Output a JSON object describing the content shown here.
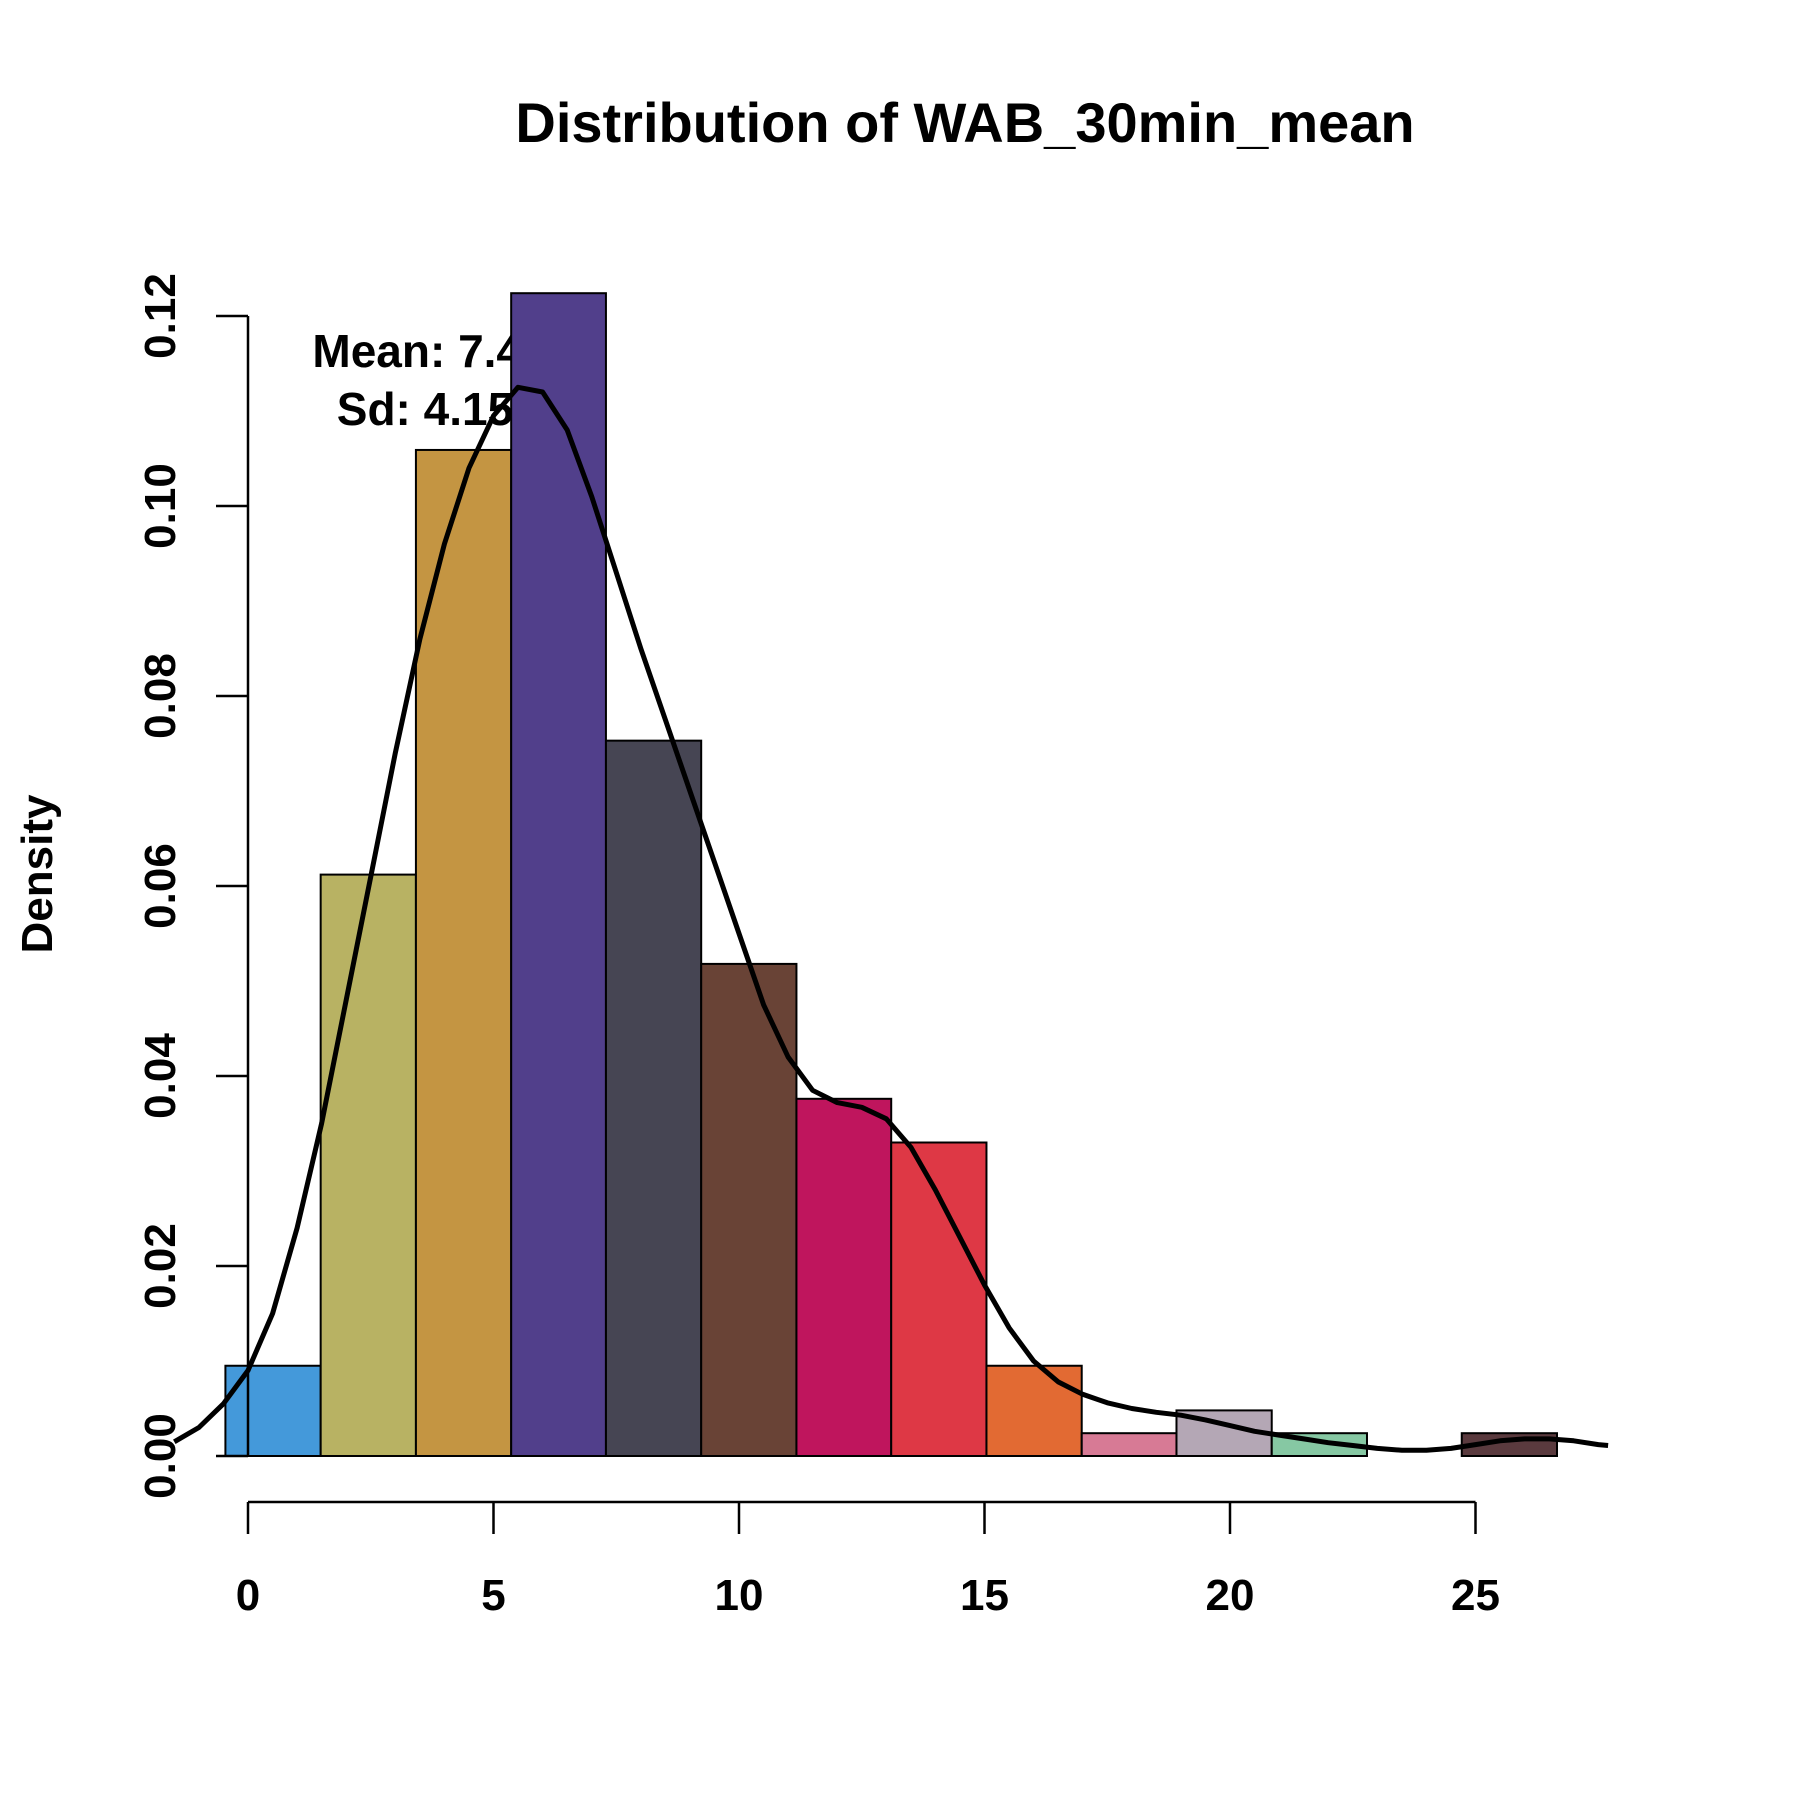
{
  "chart_data": {
    "type": "bar",
    "title": "Distribution of WAB_30min_mean",
    "xlabel": "",
    "ylabel": "Density",
    "xlim": [
      -1.5,
      27.7
    ],
    "ylim": [
      0,
      0.12
    ],
    "x_ticks": [
      "0",
      "5",
      "10",
      "15",
      "20",
      "25"
    ],
    "x_tick_values": [
      0,
      5,
      10,
      15,
      20,
      25
    ],
    "y_ticks": [
      "0.00",
      "0.02",
      "0.04",
      "0.06",
      "0.08",
      "0.10",
      "0.12"
    ],
    "y_tick_values": [
      0,
      0.02,
      0.04,
      0.06,
      0.08,
      0.1,
      0.12
    ],
    "grid": false,
    "annotations": [
      "Mean: 7.46",
      "Sd: 4.15"
    ],
    "bins": [
      {
        "x0": -0.46,
        "x1": 1.48,
        "density": 0.0095,
        "color": "#4499DA"
      },
      {
        "x0": 1.48,
        "x1": 3.42,
        "density": 0.0612,
        "color": "#B8B263"
      },
      {
        "x0": 3.42,
        "x1": 5.36,
        "density": 0.1059,
        "color": "#C49542"
      },
      {
        "x0": 5.36,
        "x1": 7.29,
        "density": 0.1224,
        "color": "#513F8B"
      },
      {
        "x0": 7.29,
        "x1": 9.23,
        "density": 0.0753,
        "color": "#464553"
      },
      {
        "x0": 9.23,
        "x1": 11.17,
        "density": 0.0518,
        "color": "#694336"
      },
      {
        "x0": 11.17,
        "x1": 13.1,
        "density": 0.0376,
        "color": "#BF155D"
      },
      {
        "x0": 13.1,
        "x1": 15.04,
        "density": 0.033,
        "color": "#DE3845"
      },
      {
        "x0": 15.04,
        "x1": 16.98,
        "density": 0.0095,
        "color": "#E26A33"
      },
      {
        "x0": 16.98,
        "x1": 18.91,
        "density": 0.0024,
        "color": "#D77A95"
      },
      {
        "x0": 18.91,
        "x1": 20.85,
        "density": 0.0048,
        "color": "#B4A7B5"
      },
      {
        "x0": 20.85,
        "x1": 22.79,
        "density": 0.0024,
        "color": "#86C8A3"
      },
      {
        "x0": 22.79,
        "x1": 24.72,
        "density": 0.0,
        "color": "#FFFFFF"
      },
      {
        "x0": 24.72,
        "x1": 26.66,
        "density": 0.0024,
        "color": "#5A3A3E"
      }
    ],
    "density_curve": [
      [
        -1.5,
        0.0015
      ],
      [
        -1.0,
        0.003
      ],
      [
        -0.5,
        0.0055
      ],
      [
        0.0,
        0.009
      ],
      [
        0.5,
        0.015
      ],
      [
        1.0,
        0.024
      ],
      [
        1.5,
        0.035
      ],
      [
        2.0,
        0.048
      ],
      [
        2.5,
        0.061
      ],
      [
        3.0,
        0.074
      ],
      [
        3.5,
        0.086
      ],
      [
        4.0,
        0.096
      ],
      [
        4.5,
        0.104
      ],
      [
        5.0,
        0.1095
      ],
      [
        5.5,
        0.1125
      ],
      [
        6.0,
        0.112
      ],
      [
        6.5,
        0.108
      ],
      [
        7.0,
        0.101
      ],
      [
        7.5,
        0.093
      ],
      [
        8.0,
        0.085
      ],
      [
        8.5,
        0.0775
      ],
      [
        9.0,
        0.07
      ],
      [
        9.5,
        0.0625
      ],
      [
        10.0,
        0.055
      ],
      [
        10.5,
        0.0475
      ],
      [
        11.0,
        0.042
      ],
      [
        11.5,
        0.0385
      ],
      [
        12.0,
        0.0372
      ],
      [
        12.5,
        0.0367
      ],
      [
        13.0,
        0.0355
      ],
      [
        13.5,
        0.0325
      ],
      [
        14.0,
        0.028
      ],
      [
        14.5,
        0.023
      ],
      [
        15.0,
        0.018
      ],
      [
        15.5,
        0.0135
      ],
      [
        16.0,
        0.01
      ],
      [
        16.5,
        0.0078
      ],
      [
        17.0,
        0.0065
      ],
      [
        17.5,
        0.0056
      ],
      [
        18.0,
        0.005
      ],
      [
        18.5,
        0.0046
      ],
      [
        19.0,
        0.0043
      ],
      [
        19.5,
        0.0038
      ],
      [
        20.0,
        0.0032
      ],
      [
        20.5,
        0.0026
      ],
      [
        21.0,
        0.0022
      ],
      [
        21.5,
        0.0018
      ],
      [
        22.0,
        0.0014
      ],
      [
        22.5,
        0.0011
      ],
      [
        23.0,
        0.0008
      ],
      [
        23.5,
        0.0006
      ],
      [
        24.0,
        0.0006
      ],
      [
        24.5,
        0.0008
      ],
      [
        25.0,
        0.0012
      ],
      [
        25.5,
        0.0016
      ],
      [
        26.0,
        0.0018
      ],
      [
        26.5,
        0.0018
      ],
      [
        27.0,
        0.0016
      ],
      [
        27.5,
        0.0012
      ],
      [
        27.7,
        0.0011
      ]
    ]
  }
}
